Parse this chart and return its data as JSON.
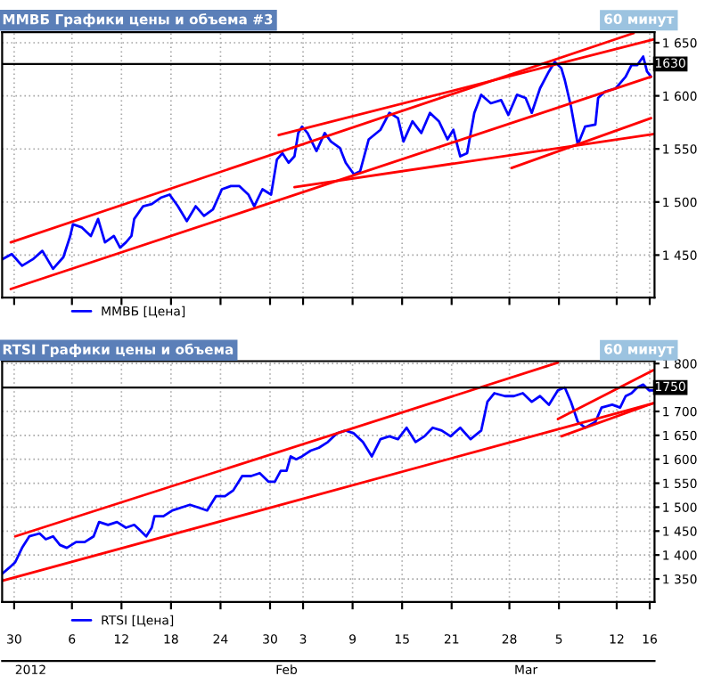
{
  "chart_data": [
    {
      "type": "line",
      "title": "ММВБ Графики цены и объема #3",
      "subtitle": "60 минут",
      "grid": true,
      "legend": "bottom left",
      "tick_labels": "y",
      "xlim": [
        "2011-12-28T13:00",
        "2012-03-16T14:00"
      ],
      "ylim": [
        1410,
        1660
      ],
      "xticks": [
        {
          "value": "2011-12-30",
          "label": null
        },
        {
          "value": "2012-01-06",
          "label": null
        },
        {
          "value": "2012-01-12",
          "label": null
        },
        {
          "value": "2012-01-18",
          "label": null
        },
        {
          "value": "2012-01-24",
          "label": null
        },
        {
          "value": "2012-01-30",
          "label": null
        },
        {
          "value": "2012-02-03",
          "label": null
        },
        {
          "value": "2012-02-09",
          "label": null
        },
        {
          "value": "2012-02-15",
          "label": null
        },
        {
          "value": "2012-02-21",
          "label": null
        },
        {
          "value": "2012-02-28",
          "label": null
        },
        {
          "value": "2012-03-05",
          "label": null
        },
        {
          "value": "2012-03-12",
          "label": null
        },
        {
          "value": "2012-03-16",
          "label": null
        }
      ],
      "yticks": [
        {
          "value": 1450,
          "label": "1 450"
        },
        {
          "value": 1500,
          "label": "1 500"
        },
        {
          "value": 1550,
          "label": "1 550"
        },
        {
          "value": 1600,
          "label": "1 600"
        },
        {
          "value": 1650,
          "label": "1 650"
        }
      ],
      "ref_lines": [
        {
          "axis": "y",
          "value": 1630,
          "label": "1630",
          "color": "#000000"
        }
      ],
      "series": [
        {
          "name": "ММВБ [Цена]",
          "color": "#0000ff",
          "x": [
            "2011-12-28T13:00",
            "2011-12-29T17:00",
            "2011-12-30T23:00",
            "2012-01-01T06:00",
            "2012-01-02T10:00",
            "2012-01-03T17:00",
            "2012-01-04T23:00",
            "2012-01-05T19:00",
            "2012-01-06T03:00",
            "2012-01-07T05:00",
            "2012-01-08T07:00",
            "2012-01-09T04:00",
            "2012-01-10T00:00",
            "2012-01-11T02:00",
            "2012-01-11T20:00",
            "2012-01-12T13:00",
            "2012-01-13T05:00",
            "2012-01-13T13:00",
            "2012-01-14T15:00",
            "2012-01-15T16:00",
            "2012-01-16T18:00",
            "2012-01-17T20:00",
            "2012-01-18T20:00",
            "2012-01-19T22:00",
            "2012-01-21T00:00",
            "2012-01-22T00:00",
            "2012-01-23T02:00",
            "2012-01-24T04:00",
            "2012-01-25T06:00",
            "2012-01-26T07:00",
            "2012-01-27T09:00",
            "2012-01-28T02:00",
            "2012-01-29T02:00",
            "2012-01-30T03:00",
            "2012-01-30T20:00",
            "2012-01-31T12:00",
            "2012-02-01T06:00",
            "2012-02-01T23:00",
            "2012-02-02T10:00",
            "2012-02-02T21:00",
            "2012-02-03T13:00",
            "2012-02-04T15:00",
            "2012-02-05T15:00",
            "2012-02-06T09:00",
            "2012-02-07T11:00",
            "2012-02-08T04:00",
            "2012-02-09T04:00",
            "2012-02-09T22:00",
            "2012-02-10T23:00",
            "2012-02-12T09:00",
            "2012-02-13T11:00",
            "2012-02-14T12:00",
            "2012-02-15T04:00",
            "2012-02-16T06:00",
            "2012-02-17T08:00",
            "2012-02-18T09:00",
            "2012-02-19T11:00",
            "2012-02-20T12:00",
            "2012-02-21T05:00",
            "2012-02-22T01:00",
            "2012-02-22T21:00",
            "2012-02-23T18:00",
            "2012-02-24T14:00",
            "2012-02-25T18:00",
            "2012-02-27T00:00",
            "2012-02-27T21:00",
            "2012-02-28T22:00",
            "2012-02-29T23:00",
            "2012-03-01T17:00",
            "2012-03-02T17:00",
            "2012-03-03T19:00",
            "2012-03-04T12:00",
            "2012-03-05T07:00",
            "2012-03-05T17:00",
            "2012-03-06T11:00",
            "2012-03-07T07:00",
            "2012-03-08T04:00",
            "2012-03-09T10:00",
            "2012-03-09T18:00",
            "2012-03-10T14:00",
            "2012-03-11T21:00",
            "2012-03-12T10:00",
            "2012-03-13T02:00",
            "2012-03-13T19:00",
            "2012-03-14T12:00",
            "2012-03-15T05:00",
            "2012-03-15T16:00",
            "2012-03-16T04:00"
          ],
          "values": [
            1446,
            1451,
            1440,
            1446,
            1454,
            1437,
            1448,
            1468,
            1479,
            1476,
            1468,
            1484,
            1462,
            1468,
            1457,
            1462,
            1468,
            1484,
            1496,
            1498,
            1504,
            1507,
            1496,
            1482,
            1496,
            1487,
            1493,
            1512,
            1515,
            1515,
            1507,
            1496,
            1512,
            1507,
            1540,
            1546,
            1537,
            1543,
            1565,
            1571,
            1565,
            1548,
            1565,
            1557,
            1551,
            1537,
            1526,
            1529,
            1559,
            1568,
            1584,
            1579,
            1557,
            1576,
            1565,
            1584,
            1576,
            1559,
            1568,
            1543,
            1546,
            1584,
            1601,
            1593,
            1596,
            1582,
            1601,
            1598,
            1584,
            1607,
            1623,
            1632,
            1626,
            1615,
            1590,
            1554,
            1571,
            1573,
            1598,
            1604,
            1607,
            1612,
            1618,
            1629,
            1629,
            1637,
            1623,
            1618
          ]
        },
        {
          "color": "#ff0000",
          "x": [
            "2011-12-29T14:00",
            "2012-03-14T01:00"
          ],
          "values": [
            1462,
            1659
          ]
        },
        {
          "color": "#ff0000",
          "x": [
            "2011-12-29T14:00",
            "2012-03-16T04:00"
          ],
          "values": [
            1418,
            1618
          ]
        },
        {
          "color": "#ff0000",
          "x": [
            "2012-01-31T01:00",
            "2012-03-16T10:00"
          ],
          "values": [
            1563,
            1653
          ]
        },
        {
          "color": "#ff0000",
          "x": [
            "2012-02-01T23:00",
            "2012-03-16T10:00"
          ],
          "values": [
            1514,
            1564
          ]
        },
        {
          "color": "#ff0000",
          "x": [
            "2012-02-28T06:00",
            "2012-03-16T04:00"
          ],
          "values": [
            1532,
            1579
          ]
        }
      ]
    },
    {
      "type": "line",
      "title": "RTSI Графики цены и объема",
      "subtitle": "60 минут",
      "grid": true,
      "legend": "bottom left",
      "xlim": [
        "2011-12-28T13:00",
        "2012-03-16T14:00"
      ],
      "ylim": [
        1302,
        1805
      ],
      "xticks": [
        {
          "value": "2011-12-30",
          "label": "30"
        },
        {
          "value": "2012-01-06",
          "label": "6"
        },
        {
          "value": "2012-01-12",
          "label": "12"
        },
        {
          "value": "2012-01-18",
          "label": "18"
        },
        {
          "value": "2012-01-24",
          "label": "24"
        },
        {
          "value": "2012-01-30",
          "label": "30"
        },
        {
          "value": "2012-02-03",
          "label": "3"
        },
        {
          "value": "2012-02-09",
          "label": "9"
        },
        {
          "value": "2012-02-15",
          "label": "15"
        },
        {
          "value": "2012-02-21",
          "label": "21"
        },
        {
          "value": "2012-02-28",
          "label": "28"
        },
        {
          "value": "2012-03-05",
          "label": "5"
        },
        {
          "value": "2012-03-12",
          "label": "12"
        },
        {
          "value": "2012-03-16",
          "label": "16"
        }
      ],
      "x2lim": [
        "2011-12-28T13:00",
        "2012-03-16T14:00"
      ],
      "x2ticks": [
        {
          "value": "2012-01-01",
          "label": "2012"
        },
        {
          "value": "2012-02-01",
          "label": "Feb"
        },
        {
          "value": "2012-03-01",
          "label": "Mar"
        }
      ],
      "yticks": [
        {
          "value": 1350,
          "label": "1 350"
        },
        {
          "value": 1400,
          "label": "1 400"
        },
        {
          "value": 1450,
          "label": "1 450"
        },
        {
          "value": 1500,
          "label": "1 500"
        },
        {
          "value": 1550,
          "label": "1 550"
        },
        {
          "value": 1600,
          "label": "1 600"
        },
        {
          "value": 1650,
          "label": "1 650"
        },
        {
          "value": 1700,
          "label": "1 700"
        },
        {
          "value": 1800,
          "label": "1 800"
        }
      ],
      "ref_lines": [
        {
          "axis": "y",
          "value": 1750,
          "label": "1750",
          "color": "#000000"
        }
      ],
      "series": [
        {
          "name": "RTSI [Цена]",
          "color": "#0000ff",
          "x": [
            "2011-12-28T13:00",
            "2011-12-29T09:00",
            "2011-12-30T03:00",
            "2011-12-30T23:00",
            "2011-12-31T20:00",
            "2012-01-02T02:00",
            "2012-01-02T20:00",
            "2012-01-03T17:00",
            "2012-01-04T13:00",
            "2012-01-05T09:00",
            "2012-01-06T12:00",
            "2012-01-07T13:00",
            "2012-01-08T15:00",
            "2012-01-09T07:00",
            "2012-01-10T09:00",
            "2012-01-11T11:00",
            "2012-01-12T13:00",
            "2012-01-13T13:00",
            "2012-01-14T07:00",
            "2012-01-15T00:00",
            "2012-01-15T16:00",
            "2012-01-16T00:00",
            "2012-01-17T02:00",
            "2012-01-18T04:00",
            "2012-01-19T05:00",
            "2012-01-20T07:00",
            "2012-01-21T09:00",
            "2012-01-22T09:00",
            "2012-01-23T11:00",
            "2012-01-24T13:00",
            "2012-01-25T13:00",
            "2012-01-26T15:00",
            "2012-01-27T17:00",
            "2012-01-28T18:00",
            "2012-01-29T20:00",
            "2012-01-30T14:00",
            "2012-01-31T07:00",
            "2012-02-01T00:00",
            "2012-02-01T12:00",
            "2012-02-02T04:00",
            "2012-02-02T21:00",
            "2012-02-03T22:00",
            "2012-02-04T22:00",
            "2012-02-06T00:00",
            "2012-02-07T02:00",
            "2012-02-08T04:00",
            "2012-02-09T04:00",
            "2012-02-10T06:00",
            "2012-02-11T08:00",
            "2012-02-12T09:00",
            "2012-02-13T11:00",
            "2012-02-14T12:00",
            "2012-02-15T13:00",
            "2012-02-16T15:00",
            "2012-02-17T17:00",
            "2012-02-18T17:00",
            "2012-02-19T19:00",
            "2012-02-20T21:00",
            "2012-02-22T01:00",
            "2012-02-23T07:00",
            "2012-02-24T14:00",
            "2012-02-25T08:00",
            "2012-02-26T04:00",
            "2012-02-27T11:00",
            "2012-02-28T13:00",
            "2012-02-29T15:00",
            "2012-03-01T17:00",
            "2012-03-02T17:00",
            "2012-03-03T19:00",
            "2012-03-04T21:00",
            "2012-03-05T17:00",
            "2012-03-06T11:00",
            "2012-03-07T07:00",
            "2012-03-08T04:00",
            "2012-03-09T10:00",
            "2012-03-10T04:00",
            "2012-03-11T11:00",
            "2012-03-12T10:00",
            "2012-03-13T02:00",
            "2012-03-13T19:00",
            "2012-03-14T12:00",
            "2012-03-15T05:00",
            "2012-03-15T22:00",
            "2012-03-16T10:00"
          ],
          "values": [
            1361,
            1373,
            1385,
            1415,
            1439,
            1445,
            1433,
            1439,
            1421,
            1415,
            1427,
            1427,
            1439,
            1469,
            1463,
            1469,
            1457,
            1463,
            1451,
            1439,
            1457,
            1481,
            1481,
            1493,
            1499,
            1505,
            1499,
            1493,
            1523,
            1523,
            1535,
            1565,
            1565,
            1571,
            1553,
            1553,
            1576,
            1576,
            1606,
            1600,
            1606,
            1618,
            1624,
            1636,
            1654,
            1660,
            1654,
            1636,
            1606,
            1642,
            1648,
            1642,
            1666,
            1636,
            1648,
            1666,
            1660,
            1648,
            1666,
            1642,
            1660,
            1720,
            1738,
            1732,
            1732,
            1738,
            1720,
            1732,
            1714,
            1744,
            1750,
            1720,
            1678,
            1666,
            1678,
            1708,
            1714,
            1708,
            1732,
            1738,
            1750,
            1756,
            1744,
            1744
          ]
        },
        {
          "color": "#ff0000",
          "x": [
            "2011-12-30T03:00",
            "2012-03-04T21:00"
          ],
          "values": [
            1439,
            1802
          ]
        },
        {
          "color": "#ff0000",
          "x": [
            "2011-12-28T13:00",
            "2012-03-16T10:00"
          ],
          "values": [
            1346,
            1717
          ]
        },
        {
          "color": "#ff0000",
          "x": [
            "2012-03-04T21:00",
            "2012-03-16T10:00"
          ],
          "values": [
            1684,
            1786
          ]
        },
        {
          "color": "#ff0000",
          "x": [
            "2012-03-05T07:00",
            "2012-03-16T10:00"
          ],
          "values": [
            1648,
            1717
          ]
        }
      ]
    }
  ]
}
